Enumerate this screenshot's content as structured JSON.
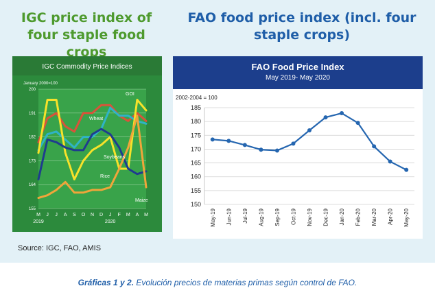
{
  "titles": {
    "igc": "IGC price index of four staple food crops",
    "fao": "FAO food price index (incl. four staple crops)"
  },
  "source": "Source: IGC, FAO, AMIS",
  "caption": {
    "bold": "Gráficas 1 y 2.",
    "text": " Evolución precios de materias primas según control de FAO."
  },
  "colors": {
    "igc_bg": "#2c8a3c",
    "fao_header": "#1c3e8c",
    "fao_line": "#2566b0",
    "goi": "#d9533a",
    "wheat": "#2fb3c6",
    "soybeans": "#f7e22a",
    "rice": "#1f3c8e",
    "maize": "#f0a53a"
  },
  "chart_data": [
    {
      "type": "line",
      "title": "IGC Commodity Price Indices",
      "subtitle": "January 2000=100",
      "ylim": [
        155,
        200
      ],
      "yticks": [
        155,
        164,
        173,
        182,
        191,
        200
      ],
      "x": [
        "M",
        "J",
        "J",
        "A",
        "S",
        "O",
        "N",
        "D",
        "J",
        "F",
        "M",
        "A",
        "M"
      ],
      "x_years": [
        {
          "label": "2019",
          "at": 0
        },
        {
          "label": "2020",
          "at": 8
        }
      ],
      "series": [
        {
          "name": "GOI",
          "color": "#d9533a",
          "values": [
            180,
            189,
            191,
            186,
            184,
            191,
            191,
            194,
            194,
            190,
            188,
            191,
            188
          ]
        },
        {
          "name": "Wheat",
          "color": "#2fb3c6",
          "values": [
            177,
            183,
            184,
            181,
            178,
            182,
            182,
            185,
            193,
            190,
            190,
            188,
            187
          ]
        },
        {
          "name": "Soybeans",
          "color": "#f7e22a",
          "values": [
            176,
            196,
            196,
            176,
            166,
            173,
            177,
            179,
            182,
            170,
            170,
            196,
            192
          ]
        },
        {
          "name": "Rice",
          "color": "#1f3c8e",
          "values": [
            166,
            181,
            180,
            178,
            177,
            177,
            183,
            185,
            183,
            178,
            170,
            168,
            169
          ]
        },
        {
          "name": "Maize",
          "color": "#f0a53a",
          "values": [
            159,
            160,
            162,
            165,
            161,
            161,
            162,
            162,
            163,
            170,
            178,
            190,
            163
          ]
        }
      ],
      "annotations": [
        "GOI",
        "Wheat",
        "Soybeans",
        "Rice",
        "Maize"
      ]
    },
    {
      "type": "line",
      "title": "FAO Food Price Index",
      "subtitle": "May 2019- May 2020",
      "y_note": "2002-2004 = 100",
      "ylim": [
        150,
        185
      ],
      "yticks": [
        150,
        155,
        160,
        165,
        170,
        175,
        180,
        185
      ],
      "categories": [
        "May-19",
        "Jun-19",
        "Jul-19",
        "Aug-19",
        "Sep-19",
        "Oct-19",
        "Nov-19",
        "Dec-19",
        "Jan-20",
        "Feb-20",
        "Mar-20",
        "Apr-20",
        "May-20"
      ],
      "series": [
        {
          "values": [
            173.5,
            173.0,
            171.5,
            169.8,
            169.5,
            172.0,
            176.8,
            181.5,
            183.0,
            179.5,
            171.0,
            165.5,
            162.5
          ]
        }
      ]
    }
  ]
}
